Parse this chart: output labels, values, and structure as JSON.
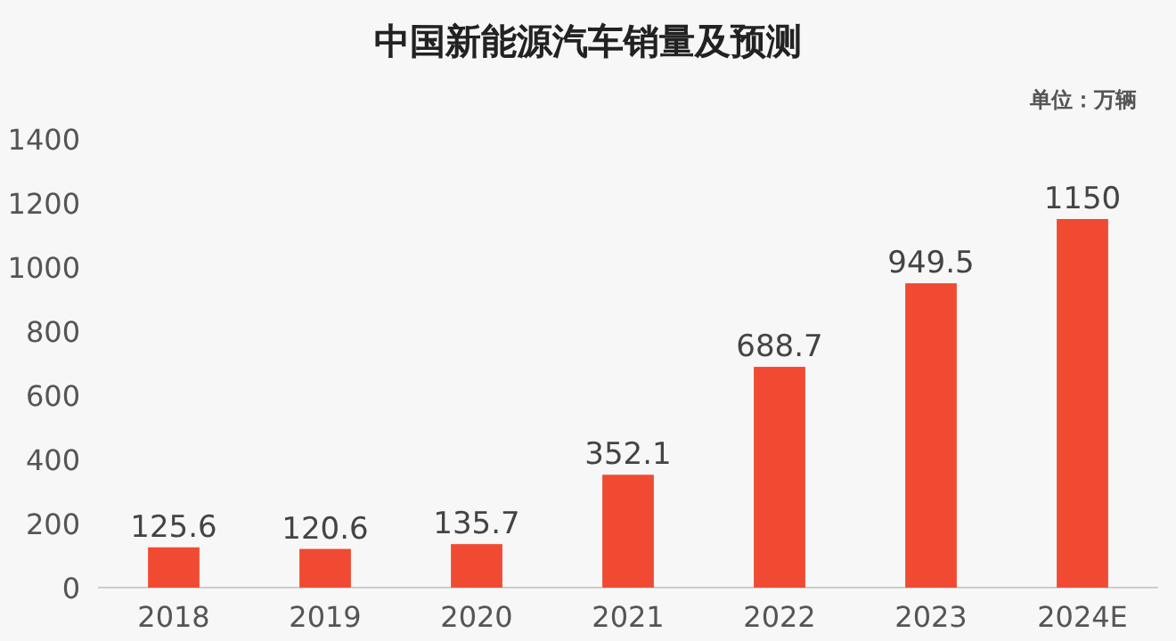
{
  "chart_data": {
    "type": "bar",
    "title": "中国新能源汽车销量及预测",
    "annotations": [
      "单位：万辆"
    ],
    "categories": [
      "2018",
      "2019",
      "2020",
      "2021",
      "2022",
      "2023",
      "2024E"
    ],
    "values": [
      125.6,
      120.6,
      135.7,
      352.1,
      688.7,
      949.5,
      1150
    ],
    "color": "#f04b32",
    "ylim": [
      0,
      1400
    ],
    "yticks": [
      0,
      200,
      400,
      600,
      800,
      1000,
      1200,
      1400
    ],
    "grid": false,
    "data_labels": true
  }
}
